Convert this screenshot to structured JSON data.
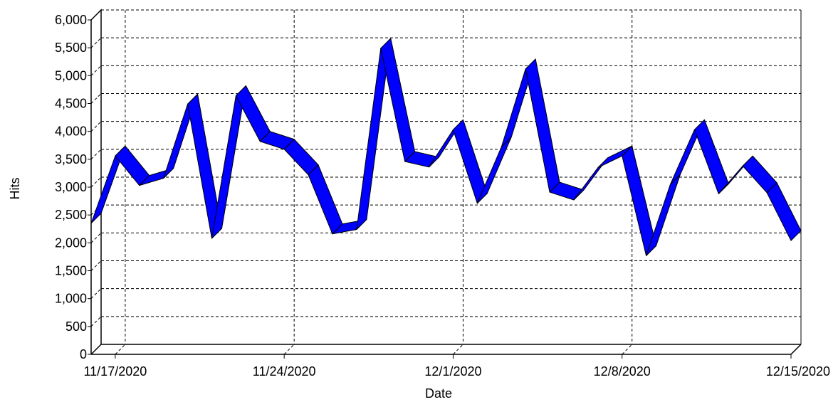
{
  "chart_data": {
    "type": "line",
    "style": "3d-ribbon",
    "xlabel": "Date",
    "ylabel": "Hits",
    "ylim": [
      0,
      6000
    ],
    "yticks": [
      0,
      500,
      1000,
      1500,
      2000,
      2500,
      3000,
      3500,
      4000,
      4500,
      5000,
      5500,
      6000
    ],
    "ytick_labels": [
      "0",
      "500",
      "1,000",
      "1,500",
      "2,000",
      "2,500",
      "3,000",
      "3,500",
      "4,000",
      "4,500",
      "5,000",
      "5,500",
      "6,000"
    ],
    "xlim": [
      "2020-11-16",
      "2020-12-15"
    ],
    "xticks": [
      "2020-11-17",
      "2020-11-24",
      "2020-12-01",
      "2020-12-08",
      "2020-12-15"
    ],
    "xtick_labels": [
      "11/17/2020",
      "11/24/2020",
      "12/1/2020",
      "12/8/2020",
      "12/15/2020"
    ],
    "grid": true,
    "series_color": "#0000ff",
    "x": [
      "2020-11-16",
      "2020-11-17",
      "2020-11-18",
      "2020-11-19",
      "2020-11-20",
      "2020-11-21",
      "2020-11-22",
      "2020-11-23",
      "2020-11-24",
      "2020-11-25",
      "2020-11-26",
      "2020-11-27",
      "2020-11-28",
      "2020-11-29",
      "2020-11-30",
      "2020-12-01",
      "2020-12-02",
      "2020-12-03",
      "2020-12-04",
      "2020-12-05",
      "2020-12-06",
      "2020-12-07",
      "2020-12-08",
      "2020-12-09",
      "2020-12-10",
      "2020-12-11",
      "2020-12-12",
      "2020-12-13",
      "2020-12-14",
      "2020-12-15"
    ],
    "series": [
      {
        "values": [
          2350,
          3560,
          3030,
          3160,
          4490,
          2080,
          4640,
          3820,
          3680,
          3220,
          2160,
          2240,
          5490,
          3460,
          3360,
          4030,
          2710,
          3720,
          5120,
          2910,
          2770,
          3350,
          3560,
          1770,
          3050,
          4030,
          2880,
          3380,
          2900,
          2040
        ]
      }
    ]
  }
}
